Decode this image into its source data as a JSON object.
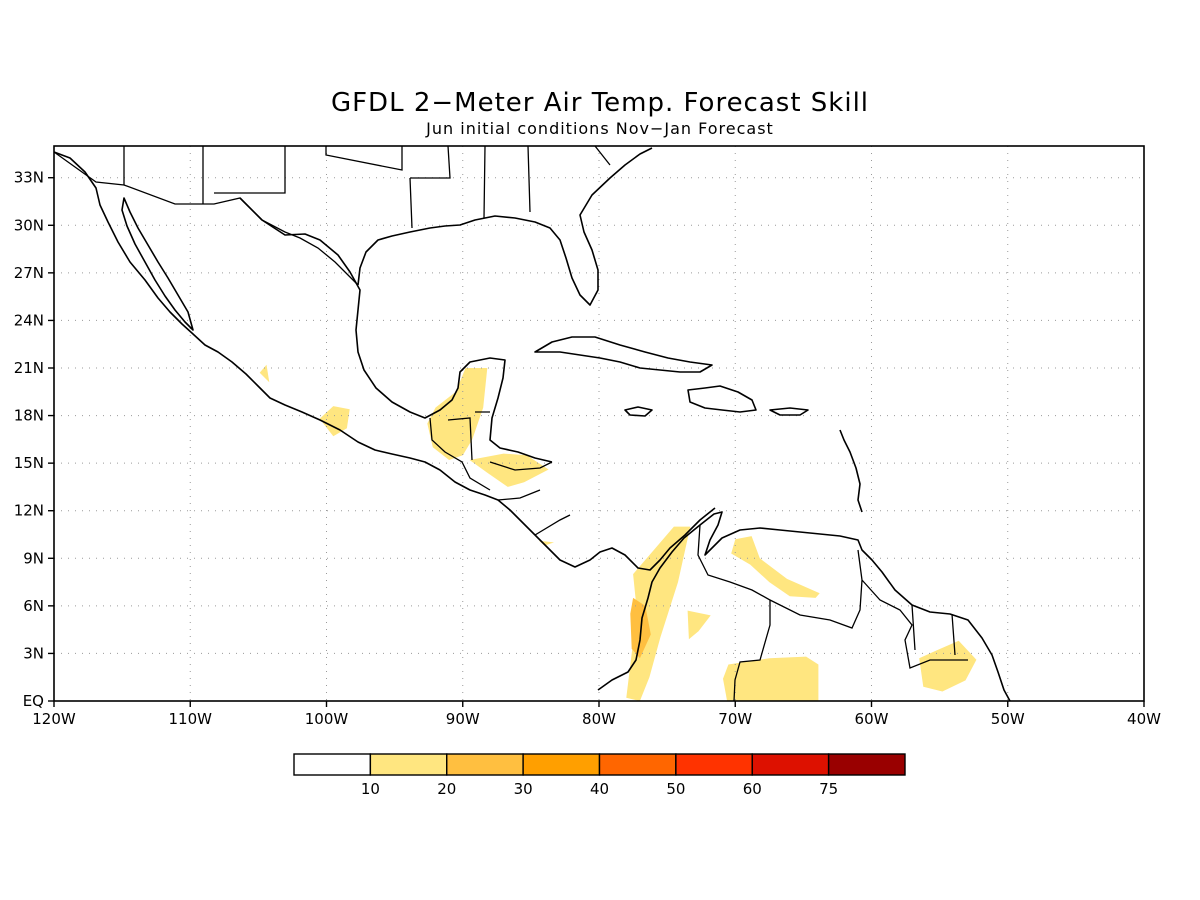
{
  "title": "GFDL 2−Meter Air Temp. Forecast Skill",
  "subtitle": "Jun initial conditions   Nov−Jan Forecast",
  "map": {
    "lon_range": [
      -120,
      -40
    ],
    "lat_range": [
      0,
      35
    ],
    "lon_ticks": [
      {
        "value": -120,
        "label": "120W"
      },
      {
        "value": -110,
        "label": "110W"
      },
      {
        "value": -100,
        "label": "100W"
      },
      {
        "value": -90,
        "label": "90W"
      },
      {
        "value": -80,
        "label": "80W"
      },
      {
        "value": -70,
        "label": "70W"
      },
      {
        "value": -60,
        "label": "60W"
      },
      {
        "value": -50,
        "label": "50W"
      },
      {
        "value": -40,
        "label": "40W"
      }
    ],
    "lat_ticks": [
      {
        "value": 0,
        "label": "EQ"
      },
      {
        "value": 3,
        "label": "3N"
      },
      {
        "value": 6,
        "label": "6N"
      },
      {
        "value": 9,
        "label": "9N"
      },
      {
        "value": 12,
        "label": "12N"
      },
      {
        "value": 15,
        "label": "15N"
      },
      {
        "value": 18,
        "label": "18N"
      },
      {
        "value": 21,
        "label": "21N"
      },
      {
        "value": 24,
        "label": "24N"
      },
      {
        "value": 27,
        "label": "27N"
      },
      {
        "value": 30,
        "label": "30N"
      },
      {
        "value": 33,
        "label": "33N"
      }
    ],
    "grid": true
  },
  "colorbar": {
    "labels": [
      "10",
      "20",
      "30",
      "40",
      "50",
      "60",
      "75"
    ],
    "colors": [
      "#ffffff",
      "#ffe680",
      "#ffbf40",
      "#ff9f00",
      "#ff6600",
      "#ff3300",
      "#dd1100",
      "#990000"
    ]
  },
  "skill_regions": [
    {
      "name": "yucatan",
      "color": "#ffe680",
      "points": [
        [
          -92,
          18.5
        ],
        [
          -90.5,
          19.5
        ],
        [
          -89.8,
          21
        ],
        [
          -88.2,
          21
        ],
        [
          -88.5,
          18.5
        ],
        [
          -89.3,
          16.5
        ],
        [
          -90,
          15.5
        ],
        [
          -91,
          15.2
        ],
        [
          -92.2,
          16
        ],
        [
          -92.6,
          17.5
        ]
      ]
    },
    {
      "name": "oaxaca",
      "color": "#ffe680",
      "points": [
        [
          -100.5,
          17.8
        ],
        [
          -99.5,
          18.6
        ],
        [
          -98.3,
          18.4
        ],
        [
          -98.5,
          17.2
        ],
        [
          -99.5,
          16.7
        ]
      ]
    },
    {
      "name": "jalisco",
      "color": "#ffe680",
      "points": [
        [
          -104.9,
          20.7
        ],
        [
          -104.4,
          21.2
        ],
        [
          -104.2,
          20.1
        ]
      ]
    },
    {
      "name": "honduras",
      "color": "#ffe680",
      "points": [
        [
          -89.5,
          15.2
        ],
        [
          -87,
          15.6
        ],
        [
          -85.3,
          15.5
        ],
        [
          -83.7,
          14.6
        ],
        [
          -85.5,
          13.8
        ],
        [
          -86.7,
          13.5
        ],
        [
          -88.2,
          14.4
        ]
      ]
    },
    {
      "name": "colombia-north",
      "color": "#ffe680",
      "points": [
        [
          -77.5,
          8
        ],
        [
          -76,
          9.5
        ],
        [
          -74.5,
          11
        ],
        [
          -73.3,
          11
        ],
        [
          -74.2,
          7.5
        ],
        [
          -75.5,
          4
        ],
        [
          -76.3,
          1.5
        ],
        [
          -77,
          0
        ],
        [
          -78,
          0.2
        ],
        [
          -77.6,
          3
        ],
        [
          -77.2,
          5.5
        ]
      ]
    },
    {
      "name": "colombia-coast",
      "color": "#ffbf40",
      "points": [
        [
          -77.5,
          6.5
        ],
        [
          -76.6,
          6
        ],
        [
          -76.2,
          4.2
        ],
        [
          -77,
          2.7
        ],
        [
          -77.6,
          3.3
        ],
        [
          -77.7,
          5.5
        ]
      ]
    },
    {
      "name": "venezuela-east",
      "color": "#ffe680",
      "points": [
        [
          -70,
          10.2
        ],
        [
          -68.8,
          10.4
        ],
        [
          -68.2,
          9
        ],
        [
          -66.2,
          7.7
        ],
        [
          -63.8,
          6.8
        ],
        [
          -64.1,
          6.5
        ],
        [
          -66,
          6.6
        ],
        [
          -67.5,
          7.5
        ],
        [
          -68.9,
          8.6
        ],
        [
          -70.3,
          9.3
        ]
      ]
    },
    {
      "name": "venezuela-south",
      "color": "#ffe680",
      "points": [
        [
          -73.5,
          5.7
        ],
        [
          -71.8,
          5.4
        ],
        [
          -72.7,
          4.4
        ],
        [
          -73.4,
          3.9
        ]
      ]
    },
    {
      "name": "amazon",
      "color": "#ffe680",
      "points": [
        [
          -70.5,
          2.3
        ],
        [
          -67.5,
          2.7
        ],
        [
          -64.8,
          2.8
        ],
        [
          -63.9,
          2.3
        ],
        [
          -63.9,
          0
        ],
        [
          -70.6,
          0
        ],
        [
          -70.9,
          1.4
        ]
      ]
    },
    {
      "name": "guianas",
      "color": "#ffe680",
      "points": [
        [
          -56.5,
          2.7
        ],
        [
          -55.2,
          3.2
        ],
        [
          -53.6,
          3.8
        ],
        [
          -52.3,
          2.6
        ],
        [
          -53.1,
          1.3
        ],
        [
          -54.8,
          0.6
        ],
        [
          -56.2,
          0.9
        ]
      ]
    },
    {
      "name": "maracaibo",
      "color": "#ffe680",
      "points": [
        [
          -84.4,
          10.1
        ],
        [
          -83.3,
          10
        ],
        [
          -84,
          9.8
        ]
      ]
    }
  ]
}
